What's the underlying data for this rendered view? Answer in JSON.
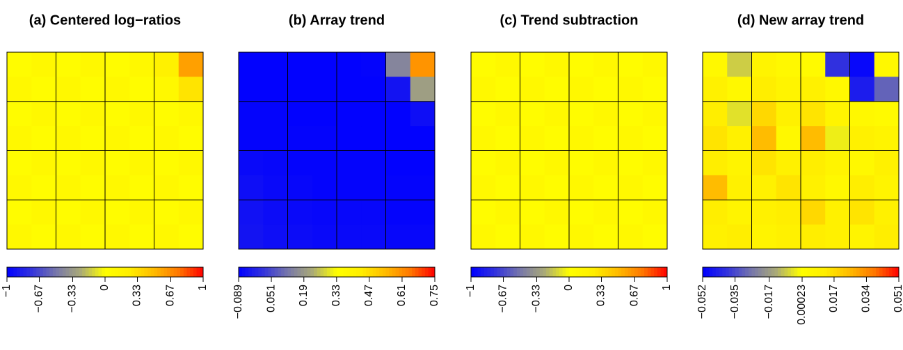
{
  "chart_data": [
    {
      "type": "heatmap",
      "title": "(a) Centered log−ratios",
      "colors": [
        "#0000ff",
        "#3333dd",
        "#7777aa",
        "#aaaa77",
        "#ffff00",
        "#ffee00",
        "#ffbb00",
        "#ff7700",
        "#ff0000"
      ],
      "zlim": [
        -1,
        1
      ],
      "zticks": [
        {
          "value": -1,
          "label": "−1"
        },
        {
          "value": -0.67,
          "label": "−0.67"
        },
        {
          "value": -0.33,
          "label": "−0.33"
        },
        0,
        0.33,
        0.67,
        1
      ],
      "z": [
        [
          0.05,
          0.1,
          0.05,
          0.1,
          0.05,
          0.1,
          0.2,
          0.6
        ],
        [
          0.1,
          0.05,
          0.1,
          0.05,
          0.1,
          0.05,
          0.1,
          0.3
        ],
        [
          0.05,
          0.1,
          0.05,
          0.1,
          0.05,
          0.1,
          0.05,
          0.1
        ],
        [
          0.1,
          0.05,
          0.1,
          0.05,
          0.1,
          0.05,
          0.1,
          0.05
        ],
        [
          0.05,
          0.1,
          0.05,
          0.1,
          0.05,
          0.1,
          0.05,
          0.1
        ],
        [
          0.1,
          0.05,
          0.1,
          0.05,
          0.1,
          0.05,
          0.1,
          0.05
        ],
        [
          0.05,
          0.1,
          0.05,
          0.1,
          0.05,
          0.1,
          0.05,
          0.1
        ],
        [
          0.1,
          0.05,
          0.1,
          0.05,
          0.1,
          0.05,
          0.1,
          0.05
        ]
      ]
    },
    {
      "type": "heatmap",
      "title": "(b) Array trend",
      "colors": [
        "#0000ff",
        "#3333dd",
        "#7777aa",
        "#aaaa77",
        "#ffff00",
        "#ffee00",
        "#ffbb00",
        "#ff7700",
        "#ff0000"
      ],
      "zlim": [
        -0.089,
        0.75
      ],
      "zticks": [
        {
          "value": -0.089,
          "label": "−0.089"
        },
        0.051,
        0.19,
        0.33,
        0.47,
        0.61,
        0.75
      ],
      "z": [
        [
          -0.085,
          -0.085,
          -0.085,
          -0.085,
          -0.085,
          -0.08,
          0.15,
          0.6
        ],
        [
          -0.085,
          -0.085,
          -0.085,
          -0.085,
          -0.085,
          -0.085,
          -0.05,
          0.2
        ],
        [
          -0.08,
          -0.08,
          -0.085,
          -0.085,
          -0.085,
          -0.085,
          -0.085,
          -0.06
        ],
        [
          -0.08,
          -0.08,
          -0.08,
          -0.08,
          -0.085,
          -0.085,
          -0.085,
          -0.085
        ],
        [
          -0.07,
          -0.075,
          -0.08,
          -0.08,
          -0.08,
          -0.08,
          -0.085,
          -0.085
        ],
        [
          -0.06,
          -0.07,
          -0.075,
          -0.08,
          -0.08,
          -0.08,
          -0.08,
          -0.08
        ],
        [
          -0.055,
          -0.065,
          -0.07,
          -0.075,
          -0.075,
          -0.075,
          -0.08,
          -0.08
        ],
        [
          -0.05,
          -0.06,
          -0.065,
          -0.07,
          -0.07,
          -0.07,
          -0.075,
          -0.075
        ]
      ]
    },
    {
      "type": "heatmap",
      "title": "(c) Trend subtraction",
      "colors": [
        "#0000ff",
        "#3333dd",
        "#7777aa",
        "#aaaa77",
        "#ffff00",
        "#ffee00",
        "#ffbb00",
        "#ff7700",
        "#ff0000"
      ],
      "zlim": [
        -1,
        1
      ],
      "zticks": [
        {
          "value": -1,
          "label": "−1"
        },
        {
          "value": -0.67,
          "label": "−0.67"
        },
        {
          "value": -0.33,
          "label": "−0.33"
        },
        0,
        0.33,
        0.67,
        1
      ],
      "z": [
        [
          0.05,
          0.1,
          0.05,
          0.1,
          0.05,
          0.1,
          0.05,
          0.1
        ],
        [
          0.1,
          0.05,
          0.1,
          0.05,
          0.1,
          0.05,
          0.1,
          0.05
        ],
        [
          0.05,
          0.1,
          0.05,
          0.1,
          0.05,
          0.1,
          0.05,
          0.1
        ],
        [
          0.1,
          0.05,
          0.1,
          0.05,
          0.1,
          0.05,
          0.1,
          0.05
        ],
        [
          0.05,
          0.1,
          0.05,
          0.1,
          0.05,
          0.1,
          0.05,
          0.1
        ],
        [
          0.1,
          0.05,
          0.1,
          0.05,
          0.1,
          0.05,
          0.1,
          0.05
        ],
        [
          0.05,
          0.1,
          0.05,
          0.1,
          0.05,
          0.1,
          0.05,
          0.1
        ],
        [
          0.1,
          0.05,
          0.1,
          0.05,
          0.1,
          0.05,
          0.1,
          0.05
        ]
      ]
    },
    {
      "type": "heatmap",
      "title": "(d) New array trend",
      "colors": [
        "#0000ff",
        "#3333dd",
        "#7777aa",
        "#aaaa77",
        "#ffff00",
        "#ffee00",
        "#ffbb00",
        "#ff7700",
        "#ff0000"
      ],
      "zlim": [
        -0.052,
        0.051
      ],
      "zticks": [
        {
          "value": -0.052,
          "label": "−0.052"
        },
        {
          "value": -0.035,
          "label": "−0.035"
        },
        {
          "value": -0.017,
          "label": "−0.017"
        },
        0.00023,
        0.017,
        0.034,
        0.051
      ],
      "z": [
        [
          0.005,
          -0.008,
          0.008,
          0.005,
          0.003,
          -0.04,
          -0.05,
          0.005
        ],
        [
          0.01,
          0.005,
          0.012,
          0.008,
          0.01,
          0.005,
          -0.045,
          -0.03
        ],
        [
          0.012,
          -0.005,
          0.018,
          0.01,
          0.015,
          0.008,
          0.005,
          0.003
        ],
        [
          0.015,
          0.01,
          0.025,
          0.005,
          0.025,
          -0.003,
          0.01,
          0.008
        ],
        [
          0.012,
          0.008,
          0.015,
          0.01,
          0.012,
          0.008,
          0.005,
          0.01
        ],
        [
          0.025,
          0.01,
          0.01,
          0.015,
          0.01,
          0.005,
          0.012,
          0.008
        ],
        [
          0.012,
          0.008,
          0.01,
          0.012,
          0.018,
          0.01,
          0.015,
          0.01
        ],
        [
          0.01,
          0.012,
          0.008,
          0.01,
          0.012,
          0.01,
          0.008,
          0.012
        ]
      ]
    }
  ]
}
